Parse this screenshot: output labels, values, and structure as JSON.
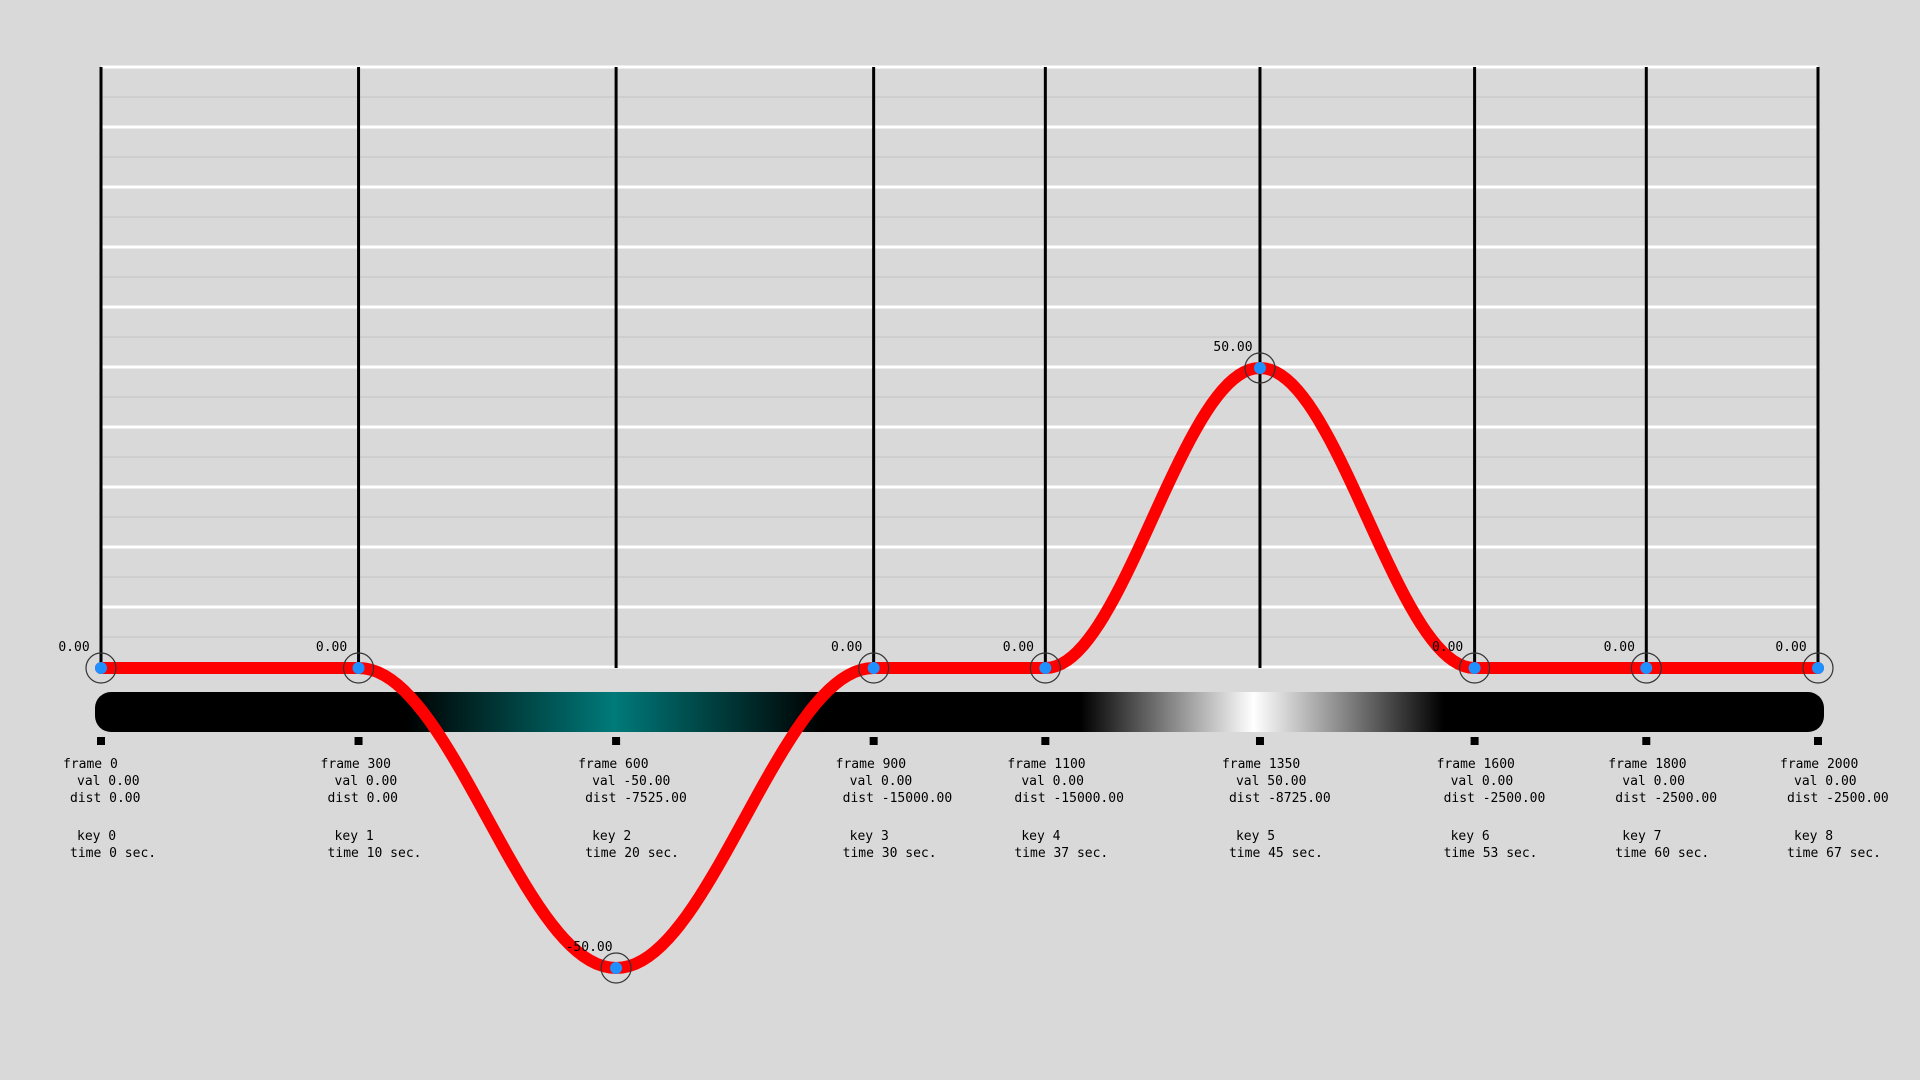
{
  "chart_data": {
    "type": "line",
    "title": "",
    "xlabel": "",
    "ylabel": "",
    "xlim": [
      0,
      2000
    ],
    "ylim": [
      -50,
      50
    ],
    "grid": true,
    "series_color": "#ff0000",
    "point_color": "#1e90ff",
    "gradient_colors": [
      "#000000",
      "#007a7a",
      "#ffffff"
    ],
    "keys": [
      {
        "frame_label": "frame 0",
        "frame": 0,
        "value": 0,
        "value_label": "0.00",
        "val_text": "val 0.00",
        "dist_text": "dist 0.00",
        "key_text": "key 0",
        "time_text": "time 0 sec."
      },
      {
        "frame_label": "frame 300",
        "frame": 300,
        "value": 0,
        "value_label": "0.00",
        "val_text": "val 0.00",
        "dist_text": "dist 0.00",
        "key_text": "key 1",
        "time_text": "time 10 sec."
      },
      {
        "frame_label": "frame 600",
        "frame": 600,
        "value": -50,
        "value_label": "-50.00",
        "val_text": "val -50.00",
        "dist_text": "dist -7525.00",
        "key_text": "key 2",
        "time_text": "time 20 sec."
      },
      {
        "frame_label": "frame 900",
        "frame": 900,
        "value": 0,
        "value_label": "0.00",
        "val_text": "val 0.00",
        "dist_text": "dist -15000.00",
        "key_text": "key 3",
        "time_text": "time 30 sec."
      },
      {
        "frame_label": "frame 1100",
        "frame": 1100,
        "value": 0,
        "value_label": "0.00",
        "val_text": "val 0.00",
        "dist_text": "dist -15000.00",
        "key_text": "key 4",
        "time_text": "time 37 sec."
      },
      {
        "frame_label": "frame 1350",
        "frame": 1350,
        "value": 50,
        "value_label": "50.00",
        "val_text": "val 50.00",
        "dist_text": "dist -8725.00",
        "key_text": "key 5",
        "time_text": "time 45 sec."
      },
      {
        "frame_label": "frame 1600",
        "frame": 1600,
        "value": 0,
        "value_label": "0.00",
        "val_text": "val 0.00",
        "dist_text": "dist -2500.00",
        "key_text": "key 6",
        "time_text": "time 53 sec."
      },
      {
        "frame_label": "frame 1800",
        "frame": 1800,
        "value": 0,
        "value_label": "0.00",
        "val_text": "val 0.00",
        "dist_text": "dist -2500.00",
        "key_text": "key 7",
        "time_text": "time 60 sec."
      },
      {
        "frame_label": "frame 2000",
        "frame": 2000,
        "value": 0,
        "value_label": "0.00",
        "val_text": "val 0.00",
        "dist_text": "dist -2500.00",
        "key_text": "key 8",
        "time_text": "time 67 sec."
      }
    ]
  }
}
